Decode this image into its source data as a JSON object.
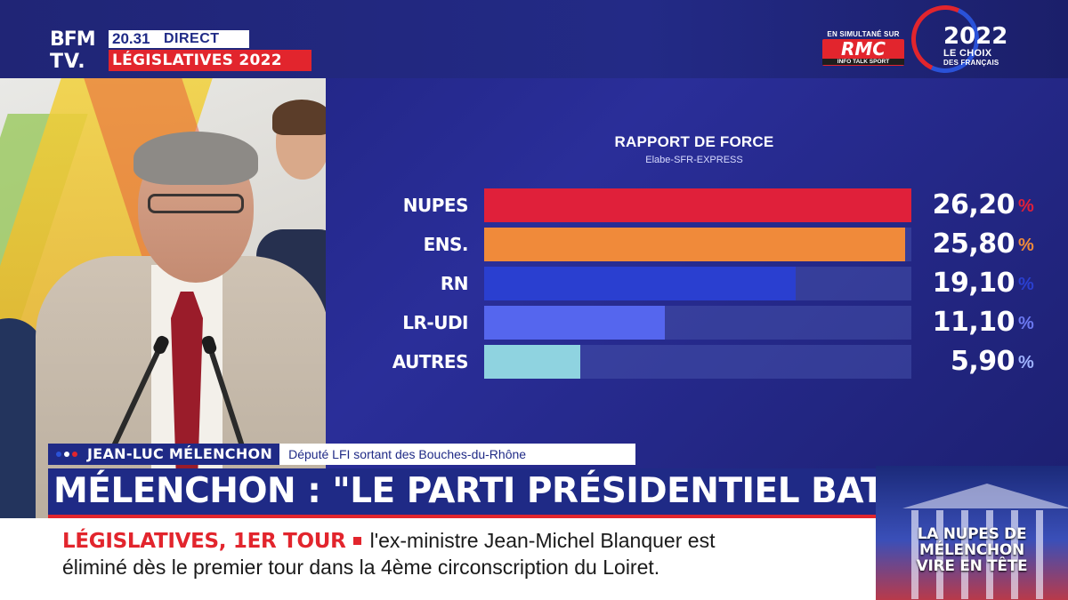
{
  "header": {
    "logo_line1": "BFM",
    "logo_line2": "TV.",
    "time": "20.31",
    "live": "DIRECT",
    "show": "LÉGISLATIVES 2022",
    "simulcast_label": "EN SIMULTANÉ SUR",
    "rmc": "RMC",
    "rmc_sub": "INFO TALK SPORT",
    "election_year": "2022",
    "election_line2": "LE CHOIX",
    "election_line3": "DES FRANÇAIS"
  },
  "chart_data": {
    "type": "bar",
    "title": "RAPPORT DE FORCE",
    "subtitle": "Elabe-SFR-EXPRESS",
    "orientation": "horizontal",
    "ylim": [
      0,
      26.2
    ],
    "categories": [
      "NUPES",
      "ENS.",
      "RN",
      "LR-UDI",
      "AUTRES"
    ],
    "values": [
      26.2,
      25.8,
      19.1,
      11.1,
      5.9
    ],
    "value_labels": [
      "26,20",
      "25,80",
      "19,10",
      "11,10",
      "5,90"
    ],
    "unit": "%",
    "colors": [
      "#e0203a",
      "#f08a3a",
      "#2a3fd0",
      "#5566ee",
      "#8fd3e0"
    ],
    "unit_colors": [
      "#e0203a",
      "#f08a3a",
      "#2a3fd0",
      "#6b78f0",
      "#9fb2ff"
    ]
  },
  "lower_third": {
    "name": "JEAN-LUC MÉLENCHON",
    "role": "Député LFI sortant des Bouches-du-Rhône",
    "dot_colors": [
      "#2a52d8",
      "#ffffff",
      "#e2252d"
    ],
    "headline": "MÉLENCHON : \"LE PARTI PRÉSIDENTIEL BATTU\""
  },
  "ticker": {
    "keyword": "LÉGISLATIVES, 1ER TOUR",
    "line1": "l'ex-ministre Jean-Michel Blanquer est",
    "line2": "éliminé dès le premier tour dans la 4ème circonscription du Loiret."
  },
  "promo": {
    "line1": "LA NUPES DE",
    "line2": "MÉLENCHON",
    "line3": "VIRE EN TÊTE"
  }
}
